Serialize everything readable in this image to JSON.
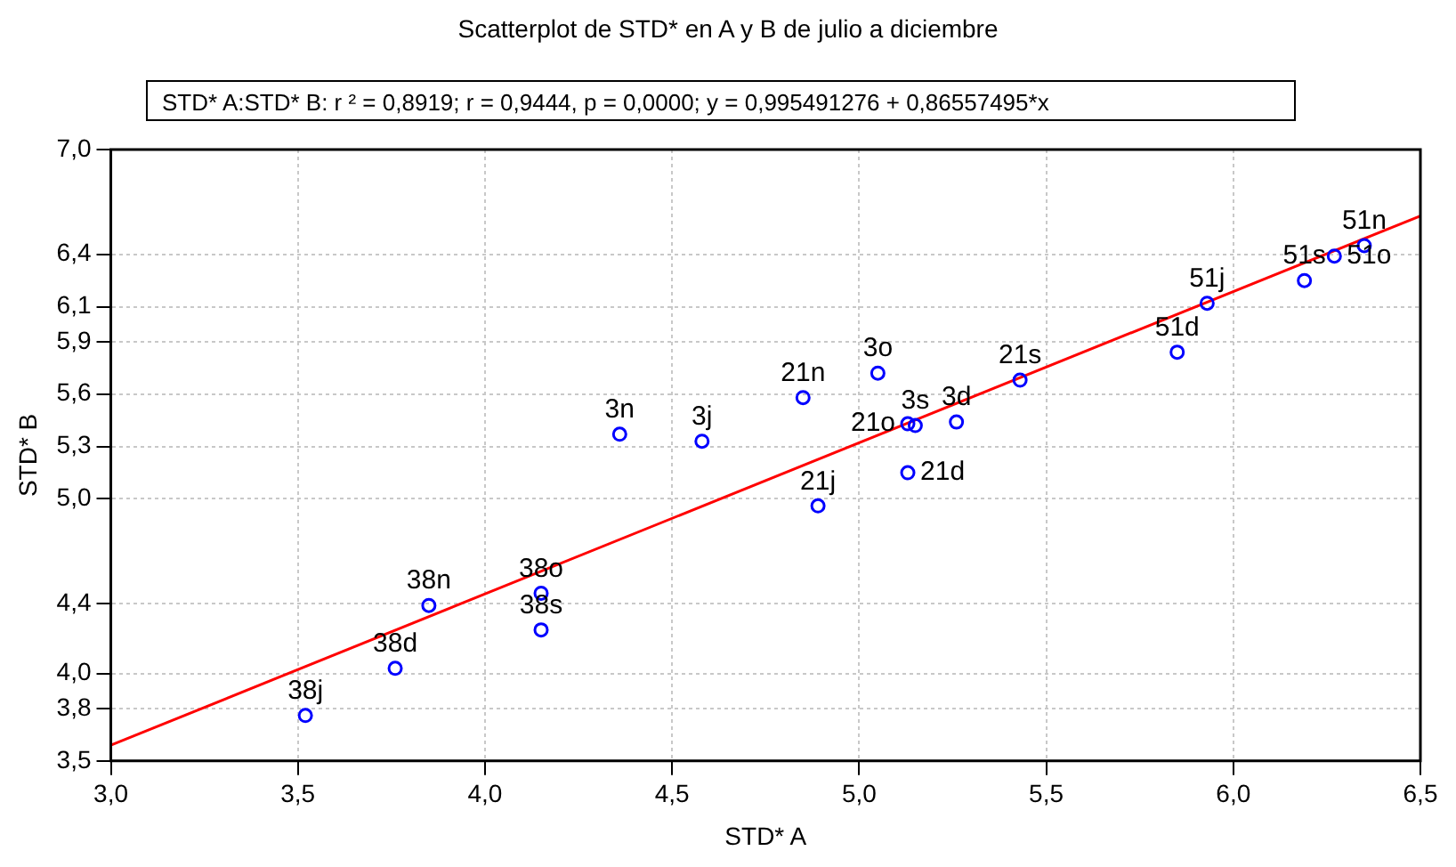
{
  "chart_data": {
    "type": "scatter",
    "title": "Scatterplot de STD* en A y B de julio a diciembre",
    "subtitle": "STD* A:STD* B:  r ² = 0,8919;  r = 0,9444, p = 0,0000;  y = 0,995491276 + 0,86557495*x",
    "xlabel": "STD* A",
    "ylabel": "STD* B",
    "series": [
      {
        "type": "scatter",
        "color": "#0000ff",
        "marker": "circle",
        "x": [
          3.52,
          3.76,
          3.85,
          4.15,
          4.15,
          4.36,
          4.58,
          5.05,
          5.15,
          5.26,
          4.85,
          4.89,
          5.43,
          5.13,
          5.13,
          5.85,
          5.93,
          6.19,
          6.27,
          6.35
        ],
        "values": [
          3.76,
          4.03,
          4.39,
          4.46,
          4.25,
          5.37,
          5.33,
          5.72,
          5.42,
          5.44,
          5.58,
          4.96,
          5.68,
          5.43,
          5.15,
          5.84,
          6.12,
          6.25,
          6.39,
          6.45
        ]
      },
      {
        "type": "line",
        "color": "#ff0000",
        "line_style": "solid",
        "marker": "none",
        "x": [
          3.0,
          6.5
        ],
        "values": [
          3.59,
          6.62
        ]
      }
    ],
    "annotations": [
      {
        "text": "38j",
        "x": 3.52,
        "y": 3.76
      },
      {
        "text": "38d",
        "x": 3.76,
        "y": 4.03
      },
      {
        "text": "38n",
        "x": 3.85,
        "y": 4.39
      },
      {
        "text": "38o",
        "x": 4.15,
        "y": 4.46
      },
      {
        "text": "38s",
        "x": 4.15,
        "y": 4.25
      },
      {
        "text": "3n",
        "x": 4.36,
        "y": 5.37
      },
      {
        "text": "3j",
        "x": 4.58,
        "y": 5.33
      },
      {
        "text": "3o",
        "x": 5.05,
        "y": 5.72
      },
      {
        "text": "3s",
        "x": 5.15,
        "y": 5.42
      },
      {
        "text": "3d",
        "x": 5.26,
        "y": 5.44
      },
      {
        "text": "21n",
        "x": 4.85,
        "y": 5.58
      },
      {
        "text": "21j",
        "x": 4.89,
        "y": 4.96
      },
      {
        "text": "21s",
        "x": 5.43,
        "y": 5.68
      },
      {
        "text": "21o",
        "x": 5.13,
        "y": 5.43
      },
      {
        "text": "21d",
        "x": 5.13,
        "y": 5.15
      },
      {
        "text": "51d",
        "x": 5.85,
        "y": 5.84
      },
      {
        "text": "51j",
        "x": 5.93,
        "y": 6.12
      },
      {
        "text": "51s",
        "x": 6.19,
        "y": 6.25
      },
      {
        "text": "51o",
        "x": 6.27,
        "y": 6.39
      },
      {
        "text": "51n",
        "x": 6.35,
        "y": 6.45
      }
    ],
    "xlim": [
      3.0,
      6.5
    ],
    "xticks": [
      {
        "value": 3.0,
        "label": "3,0"
      },
      {
        "value": 3.5,
        "label": "3,5"
      },
      {
        "value": 4.0,
        "label": "4,0"
      },
      {
        "value": 4.5,
        "label": "4,5"
      },
      {
        "value": 5.0,
        "label": "5,0"
      },
      {
        "value": 5.5,
        "label": "5,5"
      },
      {
        "value": 6.0,
        "label": "6,0"
      },
      {
        "value": 6.5,
        "label": "6,5"
      }
    ],
    "ylim": [
      3.5,
      7.0
    ],
    "yticks": [
      {
        "value": 3.5,
        "label": "3,5"
      },
      {
        "value": 3.8,
        "label": "3,8"
      },
      {
        "value": 4.0,
        "label": "4,0"
      },
      {
        "value": 4.4,
        "label": "4,4"
      },
      {
        "value": 5.0,
        "label": "5,0"
      },
      {
        "value": 5.3,
        "label": "5,3"
      },
      {
        "value": 5.6,
        "label": "5,6"
      },
      {
        "value": 5.9,
        "label": "5,9"
      },
      {
        "value": 6.1,
        "label": "6,1"
      },
      {
        "value": 6.4,
        "label": "6,4"
      },
      {
        "value": 7.0,
        "label": "7,0"
      }
    ],
    "grid": true,
    "legend": false
  }
}
